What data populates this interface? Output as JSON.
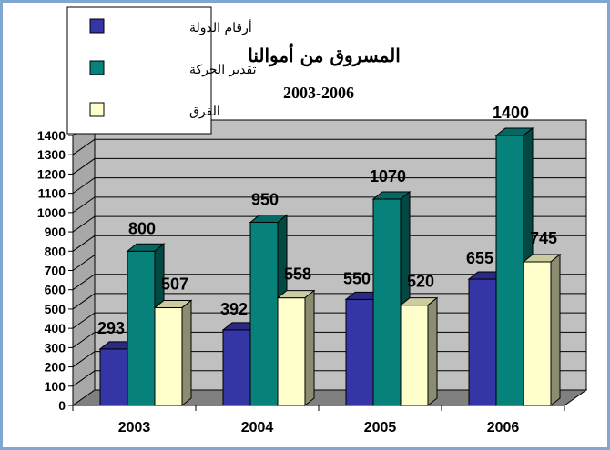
{
  "chart_data": {
    "type": "bar",
    "title": "المسروق من أموالنا",
    "subtitle": "2003-2006",
    "xlabel": "",
    "ylabel": "",
    "categories": [
      "2003",
      "2004",
      "2005",
      "2006"
    ],
    "series": [
      {
        "name": "أرقام الدولة",
        "color": "#3535a6",
        "values": [
          293,
          392,
          550,
          655
        ]
      },
      {
        "name": "تقدير الحركة",
        "color": "#07827a",
        "values": [
          800,
          950,
          1070,
          1400
        ]
      },
      {
        "name": "الفرق",
        "color": "#ffffcc",
        "values": [
          507,
          558,
          520,
          745
        ]
      }
    ],
    "ylim": [
      0,
      1400
    ],
    "yticks": [
      0,
      100,
      200,
      300,
      400,
      500,
      600,
      700,
      800,
      900,
      1000,
      1100,
      1200,
      1300,
      1400
    ],
    "grid": true,
    "legend_position": "top-left",
    "style": "3d",
    "wall_color": "#c0c0c0",
    "floor_color": "#808080"
  }
}
